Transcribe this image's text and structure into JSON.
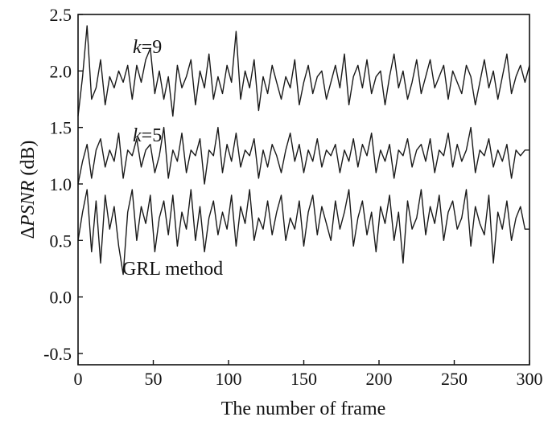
{
  "chart_data": {
    "type": "line",
    "title": "",
    "xlabel": "The number of frame",
    "ylabel": {
      "delta": "Δ",
      "italic": "PSNR",
      "unit": " (dB)"
    },
    "xlim": [
      0,
      300
    ],
    "ylim": [
      -0.6,
      2.5
    ],
    "xticks": [
      "0",
      "50",
      "100",
      "150",
      "200",
      "250",
      "300"
    ],
    "yticks": [
      "-0.5",
      "0.0",
      "0.5",
      "1.0",
      "1.5",
      "2.0",
      "2.5"
    ],
    "grid": false,
    "legend": "none",
    "line_color": "#1a1a1a",
    "series": [
      {
        "name": "k=9",
        "label_parts": {
          "italic": "k",
          "rest": "=9"
        },
        "x": [
          0,
          3,
          6,
          9,
          12,
          15,
          18,
          21,
          24,
          27,
          30,
          33,
          36,
          39,
          42,
          45,
          48,
          51,
          54,
          57,
          60,
          63,
          66,
          69,
          72,
          75,
          78,
          81,
          84,
          87,
          90,
          93,
          96,
          99,
          102,
          105,
          108,
          111,
          114,
          117,
          120,
          123,
          126,
          129,
          132,
          135,
          138,
          141,
          144,
          147,
          150,
          153,
          156,
          159,
          162,
          165,
          168,
          171,
          174,
          177,
          180,
          183,
          186,
          189,
          192,
          195,
          198,
          201,
          204,
          207,
          210,
          213,
          216,
          219,
          222,
          225,
          228,
          231,
          234,
          237,
          240,
          243,
          246,
          249,
          252,
          255,
          258,
          261,
          264,
          267,
          270,
          273,
          276,
          279,
          282,
          285,
          288,
          291,
          294,
          297,
          300
        ],
        "values": [
          1.6,
          1.95,
          2.4,
          1.75,
          1.85,
          2.1,
          1.7,
          1.95,
          1.85,
          2.0,
          1.9,
          2.05,
          1.75,
          2.05,
          1.9,
          2.1,
          2.2,
          1.8,
          2.0,
          1.75,
          1.95,
          1.6,
          2.05,
          1.85,
          1.95,
          2.1,
          1.7,
          2.0,
          1.85,
          2.15,
          1.75,
          1.95,
          1.8,
          2.05,
          1.9,
          2.35,
          1.75,
          2.0,
          1.85,
          2.1,
          1.65,
          1.95,
          1.8,
          2.05,
          1.9,
          1.75,
          1.95,
          1.85,
          2.1,
          1.7,
          1.9,
          2.05,
          1.8,
          1.95,
          2.0,
          1.75,
          1.9,
          2.05,
          1.85,
          2.15,
          1.7,
          1.95,
          2.05,
          1.85,
          2.1,
          1.8,
          1.95,
          2.0,
          1.7,
          1.95,
          2.15,
          1.85,
          2.0,
          1.75,
          1.9,
          2.1,
          1.8,
          1.95,
          2.1,
          1.85,
          1.95,
          2.05,
          1.75,
          2.0,
          1.9,
          1.8,
          2.05,
          1.95,
          1.7,
          1.9,
          2.1,
          1.85,
          2.0,
          1.75,
          1.95,
          2.15,
          1.8,
          1.95,
          2.05,
          1.9,
          2.05
        ]
      },
      {
        "name": "k=5",
        "label_parts": {
          "italic": "k",
          "rest": "=5"
        },
        "x": [
          0,
          3,
          6,
          9,
          12,
          15,
          18,
          21,
          24,
          27,
          30,
          33,
          36,
          39,
          42,
          45,
          48,
          51,
          54,
          57,
          60,
          63,
          66,
          69,
          72,
          75,
          78,
          81,
          84,
          87,
          90,
          93,
          96,
          99,
          102,
          105,
          108,
          111,
          114,
          117,
          120,
          123,
          126,
          129,
          132,
          135,
          138,
          141,
          144,
          147,
          150,
          153,
          156,
          159,
          162,
          165,
          168,
          171,
          174,
          177,
          180,
          183,
          186,
          189,
          192,
          195,
          198,
          201,
          204,
          207,
          210,
          213,
          216,
          219,
          222,
          225,
          228,
          231,
          234,
          237,
          240,
          243,
          246,
          249,
          252,
          255,
          258,
          261,
          264,
          267,
          270,
          273,
          276,
          279,
          282,
          285,
          288,
          291,
          294,
          297,
          300
        ],
        "values": [
          1.0,
          1.2,
          1.35,
          1.05,
          1.3,
          1.4,
          1.15,
          1.3,
          1.2,
          1.45,
          1.05,
          1.3,
          1.25,
          1.4,
          1.15,
          1.3,
          1.35,
          1.1,
          1.25,
          1.5,
          1.05,
          1.3,
          1.2,
          1.45,
          1.1,
          1.3,
          1.25,
          1.4,
          1.0,
          1.3,
          1.25,
          1.5,
          1.1,
          1.35,
          1.2,
          1.45,
          1.15,
          1.3,
          1.25,
          1.4,
          1.05,
          1.3,
          1.15,
          1.35,
          1.25,
          1.1,
          1.3,
          1.45,
          1.2,
          1.35,
          1.1,
          1.3,
          1.2,
          1.4,
          1.15,
          1.3,
          1.25,
          1.35,
          1.1,
          1.3,
          1.2,
          1.4,
          1.15,
          1.35,
          1.25,
          1.45,
          1.1,
          1.3,
          1.2,
          1.35,
          1.05,
          1.3,
          1.25,
          1.4,
          1.15,
          1.3,
          1.35,
          1.2,
          1.4,
          1.1,
          1.3,
          1.25,
          1.45,
          1.15,
          1.35,
          1.2,
          1.3,
          1.5,
          1.1,
          1.3,
          1.25,
          1.4,
          1.15,
          1.3,
          1.2,
          1.35,
          1.05,
          1.3,
          1.25,
          1.3,
          1.3
        ]
      },
      {
        "name": "GRL method",
        "label_parts": {
          "italic": "",
          "rest": "GRL method"
        },
        "x": [
          0,
          3,
          6,
          9,
          12,
          15,
          18,
          21,
          24,
          27,
          30,
          33,
          36,
          39,
          42,
          45,
          48,
          51,
          54,
          57,
          60,
          63,
          66,
          69,
          72,
          75,
          78,
          81,
          84,
          87,
          90,
          93,
          96,
          99,
          102,
          105,
          108,
          111,
          114,
          117,
          120,
          123,
          126,
          129,
          132,
          135,
          138,
          141,
          144,
          147,
          150,
          153,
          156,
          159,
          162,
          165,
          168,
          171,
          174,
          177,
          180,
          183,
          186,
          189,
          192,
          195,
          198,
          201,
          204,
          207,
          210,
          213,
          216,
          219,
          222,
          225,
          228,
          231,
          234,
          237,
          240,
          243,
          246,
          249,
          252,
          255,
          258,
          261,
          264,
          267,
          270,
          273,
          276,
          279,
          282,
          285,
          288,
          291,
          294,
          297,
          300
        ],
        "values": [
          0.5,
          0.75,
          0.95,
          0.4,
          0.85,
          0.3,
          0.9,
          0.6,
          0.8,
          0.45,
          0.2,
          0.75,
          0.95,
          0.5,
          0.8,
          0.65,
          0.9,
          0.4,
          0.7,
          0.85,
          0.55,
          0.9,
          0.45,
          0.75,
          0.6,
          0.95,
          0.5,
          0.8,
          0.4,
          0.7,
          0.85,
          0.55,
          0.75,
          0.6,
          0.9,
          0.45,
          0.8,
          0.65,
          0.95,
          0.5,
          0.7,
          0.6,
          0.85,
          0.55,
          0.75,
          0.9,
          0.5,
          0.7,
          0.6,
          0.85,
          0.45,
          0.75,
          0.9,
          0.55,
          0.8,
          0.65,
          0.5,
          0.85,
          0.6,
          0.75,
          0.95,
          0.45,
          0.7,
          0.85,
          0.55,
          0.75,
          0.4,
          0.8,
          0.65,
          0.9,
          0.5,
          0.75,
          0.3,
          0.85,
          0.6,
          0.7,
          0.95,
          0.55,
          0.8,
          0.65,
          0.9,
          0.5,
          0.75,
          0.85,
          0.6,
          0.7,
          0.95,
          0.45,
          0.8,
          0.65,
          0.55,
          0.9,
          0.3,
          0.75,
          0.6,
          0.85,
          0.5,
          0.7,
          0.8,
          0.6,
          0.6
        ]
      }
    ]
  }
}
